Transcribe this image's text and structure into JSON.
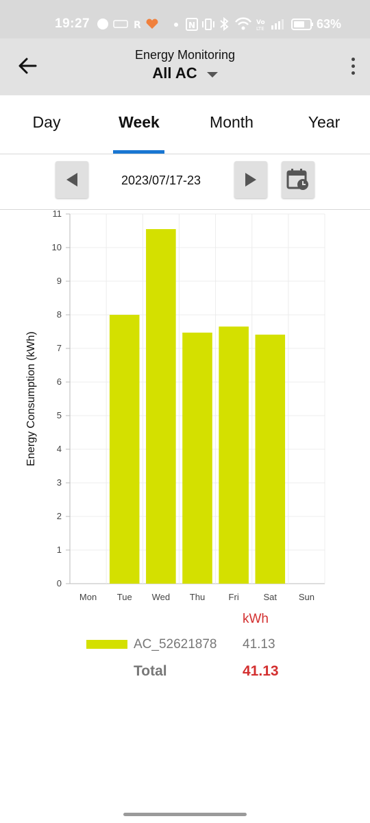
{
  "status_bar": {
    "time": "19:27",
    "battery": "63%"
  },
  "app_bar": {
    "subtitle": "Energy Monitoring",
    "title": "All AC"
  },
  "tabs": [
    {
      "label": "Day",
      "active": false
    },
    {
      "label": "Week",
      "active": true
    },
    {
      "label": "Month",
      "active": false
    },
    {
      "label": "Year",
      "active": false
    }
  ],
  "date_nav": {
    "range": "2023/07/17-23"
  },
  "colors": {
    "bar": "#d4e000",
    "accent": "#1976d2",
    "highlight": "#d32f2f"
  },
  "chart_data": {
    "type": "bar",
    "categories": [
      "Mon",
      "Tue",
      "Wed",
      "Thu",
      "Fri",
      "Sat",
      "Sun"
    ],
    "values": [
      0,
      8.0,
      10.55,
      7.47,
      7.65,
      7.41,
      0
    ],
    "ylabel": "Energy Consumption (kWh)",
    "ylim": [
      0,
      11
    ],
    "yticks": [
      "0",
      "1",
      "2",
      "3",
      "4",
      "5",
      "6",
      "7",
      "8",
      "9",
      "10",
      "11"
    ],
    "grid": true
  },
  "legend": {
    "unit": "kWh",
    "devices": [
      {
        "name": "AC_52621878",
        "value": "41.13"
      }
    ],
    "total_label": "Total",
    "total_value": "41.13"
  }
}
